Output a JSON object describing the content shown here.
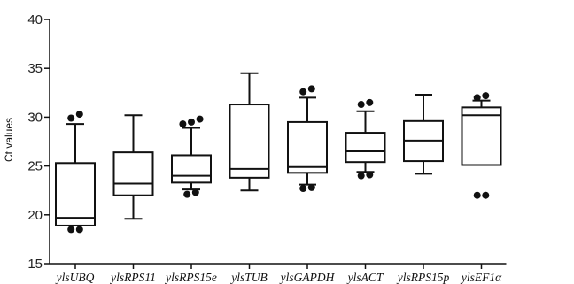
{
  "chart_data": {
    "type": "box",
    "ylabel": "Ct values",
    "xlabel": "",
    "ylim": [
      15,
      40
    ],
    "yticks": [
      15,
      20,
      25,
      30,
      35,
      40
    ],
    "grid": false,
    "categories": [
      "ylsUBQ",
      "ylsRPS11",
      "ylsRPS15e",
      "ylsTUB",
      "ylsGAPDH",
      "ylsACT",
      "ylsRPS15p",
      "ylsEF1α"
    ],
    "boxes": [
      {
        "whisker_low": null,
        "q1": 18.9,
        "median": 19.7,
        "q3": 25.3,
        "whisker_high": 29.3,
        "outliers": [
          18.5,
          18.5,
          29.9,
          30.3
        ]
      },
      {
        "whisker_low": 19.6,
        "q1": 22.0,
        "median": 23.2,
        "q3": 26.4,
        "whisker_high": 30.2,
        "outliers": []
      },
      {
        "whisker_low": 22.6,
        "q1": 23.3,
        "median": 24.0,
        "q3": 26.1,
        "whisker_high": 28.9,
        "outliers": [
          22.1,
          22.3,
          29.3,
          29.5,
          29.8
        ]
      },
      {
        "whisker_low": 22.5,
        "q1": 23.8,
        "median": 24.7,
        "q3": 31.3,
        "whisker_high": 34.5,
        "outliers": []
      },
      {
        "whisker_low": 23.1,
        "q1": 24.3,
        "median": 24.9,
        "q3": 29.5,
        "whisker_high": 32.0,
        "outliers": [
          22.7,
          22.8,
          32.6,
          32.9
        ]
      },
      {
        "whisker_low": 24.4,
        "q1": 25.4,
        "median": 26.5,
        "q3": 28.4,
        "whisker_high": 30.6,
        "outliers": [
          24.0,
          24.1,
          31.3,
          31.5
        ]
      },
      {
        "whisker_low": 24.2,
        "q1": 25.5,
        "median": 27.6,
        "q3": 29.6,
        "whisker_high": 32.3,
        "outliers": []
      },
      {
        "whisker_low": null,
        "q1": 25.1,
        "median": 30.2,
        "q3": 31.0,
        "whisker_high": 31.7,
        "outliers": [
          22.0,
          22.0,
          32.0,
          32.2
        ]
      }
    ]
  }
}
